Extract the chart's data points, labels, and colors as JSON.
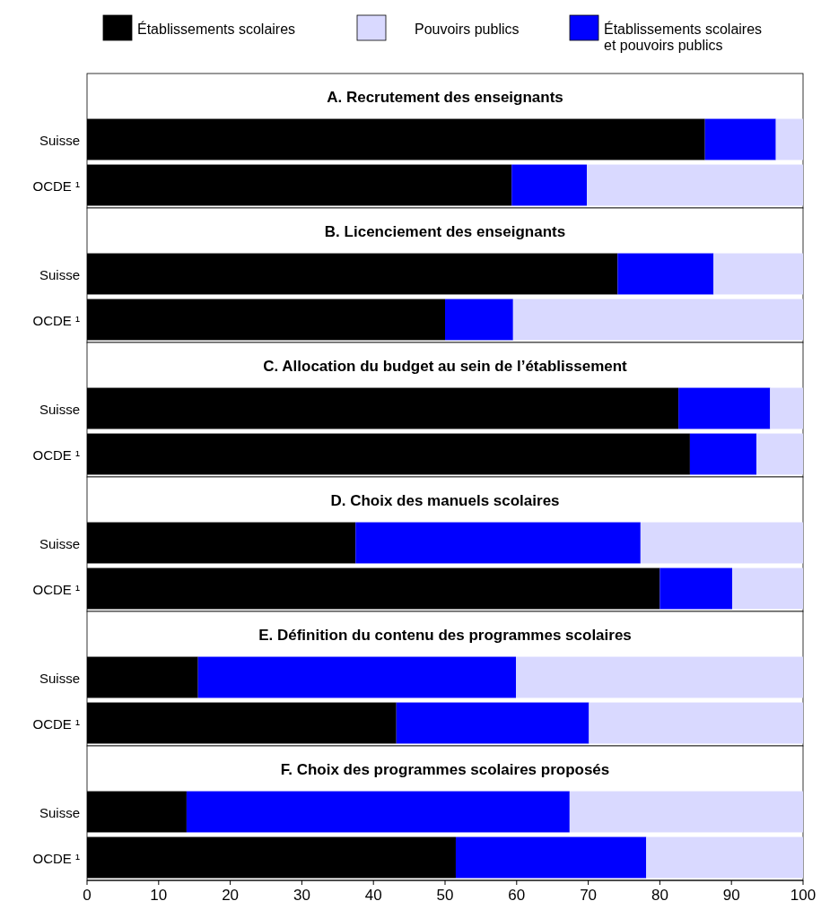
{
  "chart_data": [
    {
      "type": "bar",
      "orientation": "horizontal",
      "stacked": true,
      "title": "A. Recrutement des enseignants",
      "categories": [
        "Suisse",
        "OCDE ¹"
      ],
      "legend": "top",
      "xlim": [
        0,
        100
      ],
      "tick_labels": "y",
      "series": [
        {
          "name": "Établissements scolaires",
          "color": "#000000",
          "values": [
            86.3,
            59.3
          ]
        },
        {
          "name": "Établissements scolaires et pouvoirs publics",
          "color": "#0000ff",
          "values": [
            9.9,
            10.5
          ]
        },
        {
          "name": "Pouvoirs publics",
          "color": "#d9d9ff",
          "values": [
            3.8,
            30.2
          ]
        }
      ]
    },
    {
      "type": "bar",
      "orientation": "horizontal",
      "stacked": true,
      "title": "B. Licenciement des enseignants",
      "categories": [
        "Suisse",
        "OCDE ¹"
      ],
      "xlim": [
        0,
        100
      ],
      "tick_labels": "y",
      "series": [
        {
          "color": "#000000",
          "values": [
            74.1,
            50.0
          ]
        },
        {
          "color": "#0000ff",
          "values": [
            13.4,
            9.5
          ]
        },
        {
          "color": "#d9d9ff",
          "values": [
            12.5,
            40.5
          ]
        }
      ]
    },
    {
      "type": "bar",
      "orientation": "horizontal",
      "stacked": true,
      "title": "C. Allocation du budget au sein de l’établissement",
      "categories": [
        "Suisse",
        "OCDE ¹"
      ],
      "xlim": [
        0,
        100
      ],
      "tick_labels": "y",
      "series": [
        {
          "color": "#000000",
          "values": [
            82.6,
            84.2
          ]
        },
        {
          "color": "#0000ff",
          "values": [
            12.8,
            9.3
          ]
        },
        {
          "color": "#d9d9ff",
          "values": [
            4.6,
            6.5
          ]
        }
      ]
    },
    {
      "type": "bar",
      "orientation": "horizontal",
      "stacked": true,
      "title": "D. Choix des manuels scolaires",
      "categories": [
        "Suisse",
        "OCDE ¹"
      ],
      "xlim": [
        0,
        100
      ],
      "tick_labels": "y",
      "series": [
        {
          "color": "#000000",
          "values": [
            37.5,
            80.0
          ]
        },
        {
          "color": "#0000ff",
          "values": [
            39.8,
            10.1
          ]
        },
        {
          "color": "#d9d9ff",
          "values": [
            22.7,
            9.9
          ]
        }
      ]
    },
    {
      "type": "bar",
      "orientation": "horizontal",
      "stacked": true,
      "title": "E. Définition du contenu des programmes scolaires",
      "categories": [
        "Suisse",
        "OCDE ¹"
      ],
      "xlim": [
        0,
        100
      ],
      "tick_labels": "y",
      "series": [
        {
          "color": "#000000",
          "values": [
            15.5,
            43.2
          ]
        },
        {
          "color": "#0000ff",
          "values": [
            44.4,
            26.9
          ]
        },
        {
          "color": "#d9d9ff",
          "values": [
            40.1,
            29.9
          ]
        }
      ]
    },
    {
      "type": "bar",
      "orientation": "horizontal",
      "stacked": true,
      "title": "F. Choix des programmes scolaires proposés",
      "categories": [
        "Suisse",
        "OCDE ¹"
      ],
      "xlim": [
        0,
        100
      ],
      "xticks": [
        0,
        10,
        20,
        30,
        40,
        50,
        60,
        70,
        80,
        90,
        100
      ],
      "series": [
        {
          "color": "#000000",
          "values": [
            13.9,
            51.5
          ]
        },
        {
          "color": "#0000ff",
          "values": [
            53.5,
            26.6
          ]
        },
        {
          "color": "#d9d9ff",
          "values": [
            32.6,
            21.9
          ]
        }
      ]
    }
  ]
}
